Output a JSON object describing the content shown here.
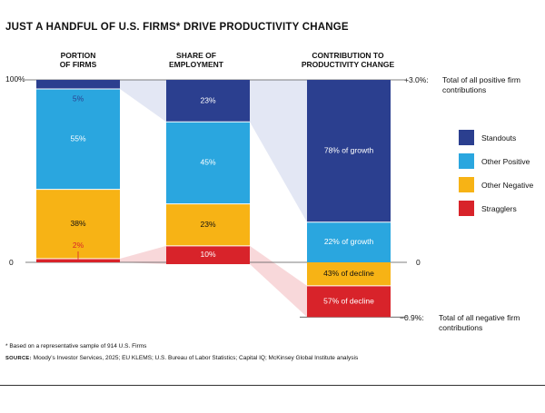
{
  "title": "JUST A HANDFUL OF U.S. FIRMS* DRIVE PRODUCTIVITY CHANGE",
  "colors": {
    "standouts": "#2b3f8f",
    "other_positive": "#2aa6df",
    "other_negative": "#f7b315",
    "stragglers": "#d8232a",
    "connector_blue": "#e3e7f4",
    "connector_red": "#f8d8da"
  },
  "chart_data": {
    "type": "bar",
    "title": "JUST A HANDFUL OF U.S. FIRMS* DRIVE PRODUCTIVITY CHANGE",
    "categories": [
      "PORTION OF FIRMS",
      "SHARE OF EMPLOYMENT",
      "CONTRIBUTION TO PRODUCTIVITY CHANGE"
    ],
    "series": [
      {
        "name": "Standouts",
        "values": [
          5,
          23,
          78
        ],
        "labels": [
          "5%",
          "23%",
          "78% of growth"
        ]
      },
      {
        "name": "Other Positive",
        "values": [
          55,
          45,
          22
        ],
        "labels": [
          "55%",
          "45%",
          "22% of growth"
        ]
      },
      {
        "name": "Other Negative",
        "values": [
          38,
          23,
          43
        ],
        "labels": [
          "38%",
          "23%",
          "43% of decline"
        ]
      },
      {
        "name": "Stragglers",
        "values": [
          2,
          10,
          57
        ],
        "labels": [
          "2%",
          "10%",
          "57% of decline"
        ]
      }
    ],
    "left_axis": {
      "top": "100%",
      "zero": "0"
    },
    "right_axis": {
      "top": "+3.0%:",
      "zero": "0",
      "bottom": "−0.9%:",
      "top_value": 3.0,
      "bottom_value": -0.9,
      "top_note": "Total of all positive firm contributions",
      "bottom_note": "Total of all negative firm contributions"
    },
    "legend": [
      "Standouts",
      "Other Positive",
      "Other Negative",
      "Stragglers"
    ]
  },
  "column_headers": {
    "firms": "PORTION\nOF FIRMS",
    "employment": "SHARE OF\nEMPLOYMENT",
    "contribution": "CONTRIBUTION TO\nPRODUCTIVITY CHANGE"
  },
  "footnote": "* Based on a representative sample of 914 U.S. Firms",
  "source_label": "SOURCE:",
  "source_text": " Moody’s Investor Services, 2025; EU KLEMS; U.S. Bureau of Labor Statistics; Capital IQ; McKinsey Global Institute analysis"
}
